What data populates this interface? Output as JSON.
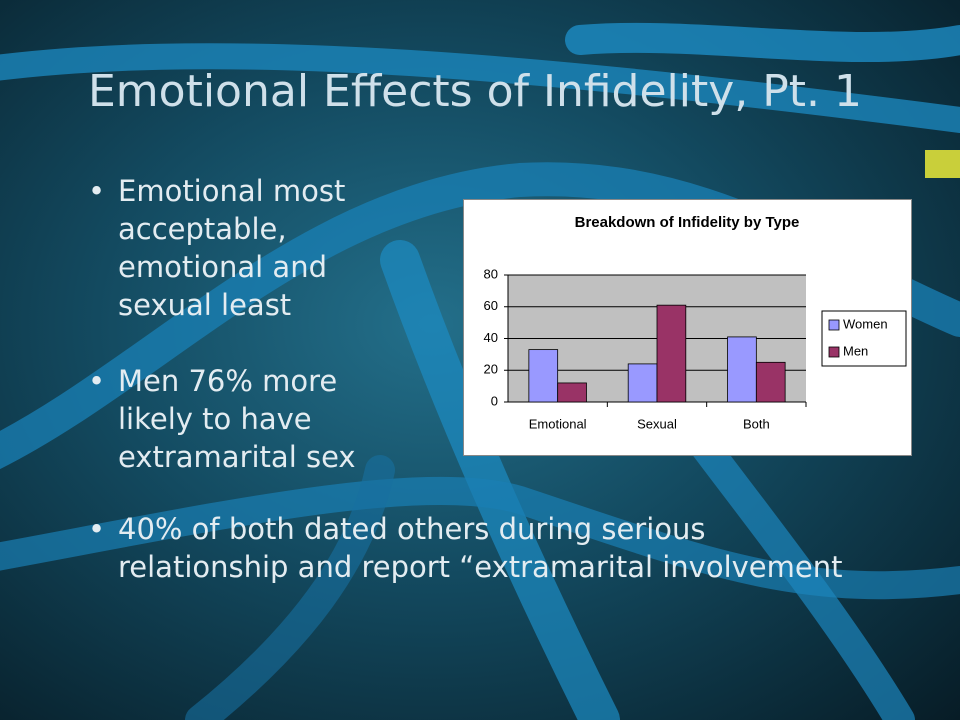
{
  "title": "Emotional Effects of Infidelity, Pt. 1",
  "bullets": [
    "Emotional most acceptable, emotional and sexual least",
    "Men 76% more likely to have extramarital sex",
    "40%  of both dated others during serious relationship and report “extramarital involvement"
  ],
  "chart_data": {
    "type": "bar",
    "title": "Breakdown of Infidelity by Type",
    "categories": [
      "Emotional",
      "Sexual",
      "Both"
    ],
    "series": [
      {
        "name": "Women",
        "color": "#9999ff",
        "values": [
          33,
          24,
          41
        ]
      },
      {
        "name": "Men",
        "color": "#993366",
        "values": [
          12,
          61,
          25
        ]
      }
    ],
    "ylim": [
      0,
      80
    ],
    "yticks": [
      0,
      20,
      40,
      60,
      80
    ],
    "grid": true,
    "legend": "right"
  }
}
